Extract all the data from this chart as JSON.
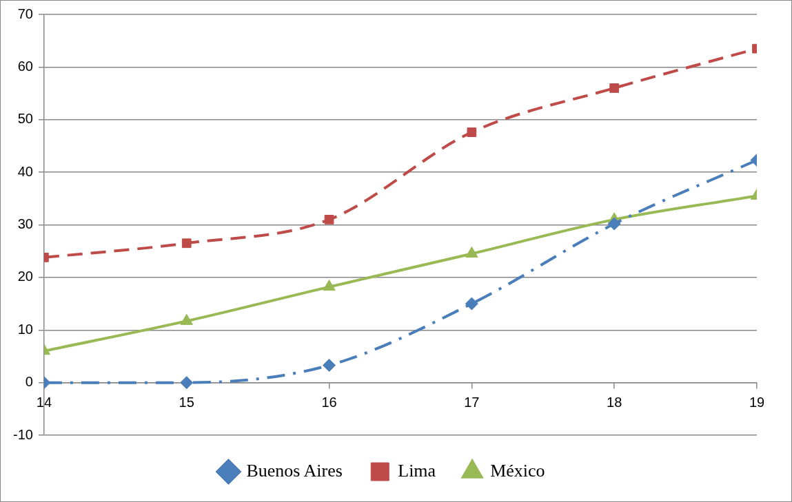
{
  "chart_data": {
    "type": "line",
    "x": [
      14,
      15,
      16,
      17,
      18,
      19
    ],
    "xlim": [
      14,
      19
    ],
    "xticks": [
      14,
      15,
      16,
      17,
      18,
      19
    ],
    "ylim": [
      -10,
      70
    ],
    "yticks": [
      -10,
      0,
      10,
      20,
      30,
      40,
      50,
      60,
      70
    ],
    "grid": "y",
    "legend": "bottom",
    "series": [
      {
        "name": "Buenos Aires",
        "color": "#4a7ebb",
        "marker": "diamond",
        "line_style": "dashdot",
        "values": [
          0,
          0,
          3.3,
          15,
          30.2,
          42.3
        ]
      },
      {
        "name": "Lima",
        "color": "#be4b48",
        "marker": "square",
        "line_style": "dashed",
        "values": [
          23.8,
          26.5,
          31,
          47.6,
          56,
          63.5
        ]
      },
      {
        "name": "México",
        "color": "#98b954",
        "marker": "triangle",
        "line_style": "solid",
        "values": [
          6,
          11.7,
          18.2,
          24.5,
          31,
          35.5
        ]
      }
    ]
  }
}
